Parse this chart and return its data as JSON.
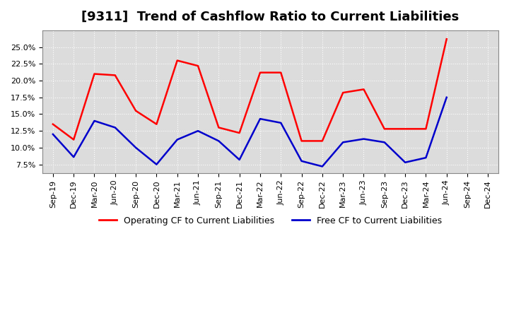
{
  "title": "[9311]  Trend of Cashflow Ratio to Current Liabilities",
  "x_labels": [
    "Sep-19",
    "Dec-19",
    "Mar-20",
    "Jun-20",
    "Sep-20",
    "Dec-20",
    "Mar-21",
    "Jun-21",
    "Sep-21",
    "Dec-21",
    "Mar-22",
    "Jun-22",
    "Sep-22",
    "Dec-22",
    "Mar-23",
    "Jun-23",
    "Sep-23",
    "Dec-23",
    "Mar-24",
    "Jun-24",
    "Sep-24",
    "Dec-24"
  ],
  "operating_cf": [
    0.135,
    0.112,
    0.21,
    0.208,
    0.155,
    0.135,
    0.23,
    0.222,
    0.13,
    0.122,
    0.212,
    0.212,
    0.11,
    0.11,
    0.182,
    0.187,
    0.128,
    0.128,
    0.128,
    0.262,
    null,
    null
  ],
  "free_cf": [
    0.12,
    0.086,
    0.14,
    0.13,
    0.1,
    0.075,
    0.112,
    0.125,
    0.11,
    0.082,
    0.143,
    0.137,
    0.08,
    0.072,
    0.108,
    0.113,
    0.108,
    0.078,
    0.085,
    0.175,
    null,
    null
  ],
  "operating_color": "#FF0000",
  "free_color": "#0000CC",
  "ylim": [
    0.062,
    0.275
  ],
  "yticks": [
    0.075,
    0.1,
    0.125,
    0.15,
    0.175,
    0.2,
    0.225,
    0.25
  ],
  "background_color": "#DCDCDC",
  "grid_color": "#FFFFFF",
  "title_fontsize": 13,
  "legend_fontsize": 9,
  "tick_fontsize": 8
}
